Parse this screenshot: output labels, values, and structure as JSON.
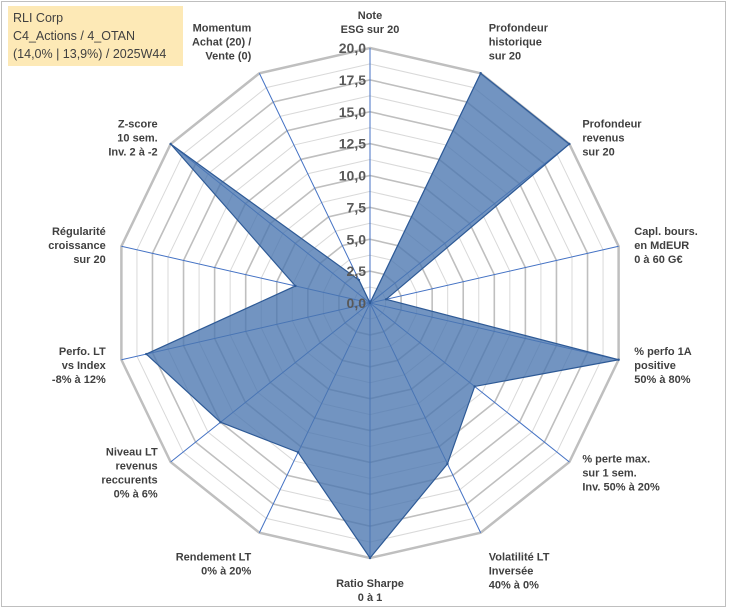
{
  "header": {
    "line1": "RLI Corp",
    "line2": "C4_Actions / 4_OTAN",
    "line3": "(14,0% | 13,9%) / 2025W44"
  },
  "colors": {
    "fill": "#4a76b0",
    "stroke": "#2e5a96",
    "grid_major": "#bfbfbf",
    "grid_minor": "#d9d9d9",
    "spoke": "#4472c4",
    "header_bg": "#fde9b6"
  },
  "chart_data": {
    "type": "radar",
    "title": "",
    "rmax": 20,
    "ticks": [
      "0,0",
      "2,5",
      "5,0",
      "7,5",
      "10,0",
      "12,5",
      "15,0",
      "17,5",
      "20,0"
    ],
    "categories": [
      [
        "Note",
        "ESG sur 20"
      ],
      [
        "Profondeur",
        "historique",
        "sur 20"
      ],
      [
        "Profondeur",
        "revenus",
        "sur 20"
      ],
      [
        "Capl. bours.",
        "en MdEUR",
        "0 à 60 G€"
      ],
      [
        "% perfo 1A",
        "positive",
        "50% à 80%"
      ],
      [
        "% perte max.",
        "sur 1 sem.",
        "Inv. 50% à 20%"
      ],
      [
        "Volatilité LT",
        "Inversée",
        "40% à 0%"
      ],
      [
        "Ratio Sharpe",
        "0 à 1"
      ],
      [
        "Rendement LT",
        "0% à 20%"
      ],
      [
        "Niveau LT",
        "revenus",
        "reccurents",
        "0% à 6%"
      ],
      [
        "Perfo. LT",
        "vs Index",
        "-8% à 12%"
      ],
      [
        "Régularité",
        "croissance",
        "sur 20"
      ],
      [
        "Z-score",
        "10 sem.",
        "Inv. 2 à -2"
      ],
      [
        "Momentum",
        "Achat (20) /",
        "Vente (0)"
      ]
    ],
    "series": [
      {
        "name": "RLI Corp",
        "values": [
          0,
          20,
          20,
          1.3,
          20,
          10.5,
          14,
          20,
          13,
          15,
          18,
          6,
          20,
          2
        ]
      }
    ]
  }
}
